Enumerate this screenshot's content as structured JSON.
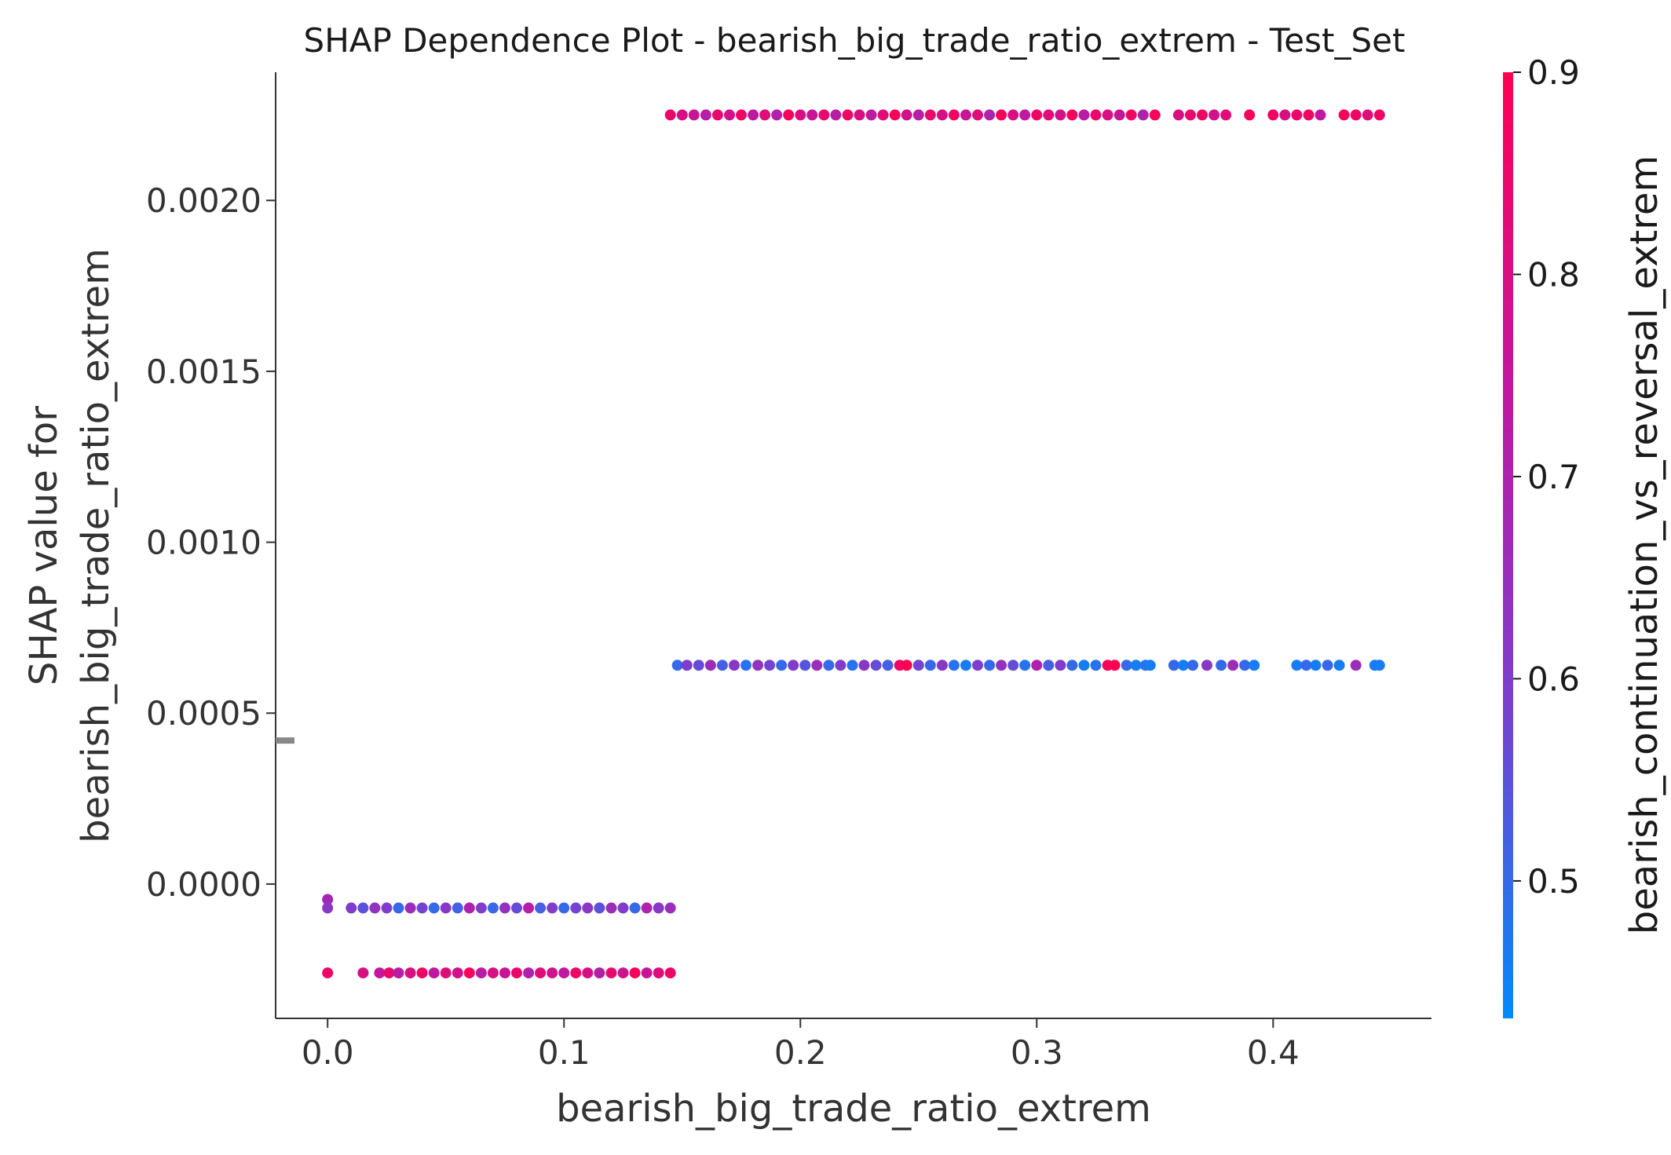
{
  "chart_data": {
    "type": "scatter",
    "title": "SHAP Dependence Plot - bearish_big_trade_ratio_extrem - Test_Set",
    "xlabel": "bearish_big_trade_ratio_extrem",
    "ylabel_lines": [
      "SHAP value for",
      "bearish_big_trade_ratio_extrem"
    ],
    "xlim": [
      -0.022,
      0.467
    ],
    "ylim": [
      -0.000393,
      0.002375
    ],
    "x_ticks": [
      0.0,
      0.1,
      0.2,
      0.3,
      0.4
    ],
    "x_tick_labels": [
      "0.0",
      "0.1",
      "0.2",
      "0.3",
      "0.4"
    ],
    "y_ticks": [
      0.0,
      0.0005,
      0.001,
      0.0015,
      0.002
    ],
    "y_tick_labels": [
      "0.0000",
      "0.0005",
      "0.0010",
      "0.0015",
      "0.0020"
    ],
    "grid": false,
    "colorbar": {
      "label": "bearish_continuation_vs_reversal_extrem",
      "range": [
        0.432,
        0.9
      ],
      "ticks": [
        0.5,
        0.6,
        0.7,
        0.8,
        0.9
      ],
      "tick_labels": [
        "0.5",
        "0.6",
        "0.7",
        "0.8",
        "0.9"
      ],
      "colormap": [
        "#008afb",
        "#7a3fcf",
        "#c2179f",
        "#ff0051"
      ]
    },
    "missing_value_marker": {
      "y": 0.00042,
      "color": "#888888"
    },
    "point_color_default": "#7a3fcf",
    "series": [
      {
        "x": [
          0.0,
          0.0,
          0.01,
          0.015,
          0.02,
          0.025,
          0.03,
          0.035,
          0.04,
          0.045,
          0.05,
          0.055,
          0.06,
          0.065,
          0.07,
          0.075,
          0.08,
          0.085,
          0.09,
          0.095,
          0.1,
          0.105,
          0.11,
          0.115,
          0.12,
          0.125,
          0.13,
          0.135,
          0.14,
          0.145
        ],
        "y": [
          -4.5e-05,
          -7e-05,
          -7e-05,
          -7e-05,
          -7e-05,
          -7e-05,
          -7e-05,
          -7e-05,
          -7e-05,
          -7e-05,
          -7e-05,
          -7e-05,
          -7e-05,
          -7e-05,
          -7e-05,
          -7e-05,
          -7e-05,
          -7e-05,
          -7e-05,
          -7e-05,
          -7e-05,
          -7e-05,
          -7e-05,
          -7e-05,
          -7e-05,
          -7e-05,
          -7e-05,
          -7e-05,
          -7e-05,
          -7e-05
        ],
        "color_value": [
          0.68,
          0.62,
          0.6,
          0.55,
          0.64,
          0.6,
          0.5,
          0.66,
          0.58,
          0.5,
          0.62,
          0.52,
          0.7,
          0.6,
          0.5,
          0.64,
          0.56,
          0.72,
          0.52,
          0.6,
          0.5,
          0.58,
          0.62,
          0.55,
          0.66,
          0.6,
          0.5,
          0.7,
          0.62,
          0.66
        ]
      },
      {
        "x": [
          0.0,
          0.015,
          0.022,
          0.026,
          0.03,
          0.035,
          0.04,
          0.045,
          0.05,
          0.055,
          0.06,
          0.065,
          0.07,
          0.075,
          0.08,
          0.085,
          0.09,
          0.095,
          0.1,
          0.105,
          0.11,
          0.115,
          0.12,
          0.125,
          0.13,
          0.135,
          0.14,
          0.145
        ],
        "y": [
          -0.00026,
          -0.00026,
          -0.00026,
          -0.00026,
          -0.00026,
          -0.00026,
          -0.00026,
          -0.00026,
          -0.00026,
          -0.00026,
          -0.00026,
          -0.00026,
          -0.00026,
          -0.00026,
          -0.00026,
          -0.00026,
          -0.00026,
          -0.00026,
          -0.00026,
          -0.00026,
          -0.00026,
          -0.00026,
          -0.00026,
          -0.00026,
          -0.00026,
          -0.00026,
          -0.00026,
          -0.00026
        ],
        "color_value": [
          0.86,
          0.8,
          0.75,
          0.84,
          0.72,
          0.8,
          0.86,
          0.74,
          0.82,
          0.78,
          0.88,
          0.72,
          0.8,
          0.76,
          0.85,
          0.7,
          0.82,
          0.78,
          0.74,
          0.86,
          0.8,
          0.72,
          0.84,
          0.78,
          0.88,
          0.76,
          0.82,
          0.86
        ]
      },
      {
        "x": [
          0.145,
          0.15,
          0.155,
          0.16,
          0.165,
          0.17,
          0.175,
          0.18,
          0.185,
          0.19,
          0.195,
          0.2,
          0.205,
          0.21,
          0.215,
          0.22,
          0.225,
          0.23,
          0.235,
          0.24,
          0.245,
          0.25,
          0.255,
          0.26,
          0.265,
          0.27,
          0.275,
          0.28,
          0.285,
          0.29,
          0.295,
          0.3,
          0.305,
          0.31,
          0.315,
          0.32,
          0.325,
          0.33,
          0.335,
          0.34,
          0.345,
          0.35,
          0.36,
          0.365,
          0.37,
          0.375,
          0.38,
          0.39,
          0.4,
          0.405,
          0.41,
          0.415,
          0.42,
          0.43,
          0.435,
          0.44,
          0.445
        ],
        "y": [
          0.00225,
          0.00225,
          0.00225,
          0.00225,
          0.00225,
          0.00225,
          0.00225,
          0.00225,
          0.00225,
          0.00225,
          0.00225,
          0.00225,
          0.00225,
          0.00225,
          0.00225,
          0.00225,
          0.00225,
          0.00225,
          0.00225,
          0.00225,
          0.00225,
          0.00225,
          0.00225,
          0.00225,
          0.00225,
          0.00225,
          0.00225,
          0.00225,
          0.00225,
          0.00225,
          0.00225,
          0.00225,
          0.00225,
          0.00225,
          0.00225,
          0.00225,
          0.00225,
          0.00225,
          0.00225,
          0.00225,
          0.00225,
          0.00225,
          0.00225,
          0.00225,
          0.00225,
          0.00225,
          0.00225,
          0.00225,
          0.00225,
          0.00225,
          0.00225,
          0.00225,
          0.00225,
          0.00225,
          0.00225,
          0.00225,
          0.00225
        ],
        "color_value": [
          0.85,
          0.8,
          0.76,
          0.72,
          0.84,
          0.78,
          0.86,
          0.74,
          0.82,
          0.7,
          0.88,
          0.8,
          0.76,
          0.84,
          0.72,
          0.86,
          0.8,
          0.74,
          0.82,
          0.88,
          0.78,
          0.72,
          0.84,
          0.8,
          0.86,
          0.76,
          0.82,
          0.7,
          0.88,
          0.8,
          0.74,
          0.86,
          0.82,
          0.78,
          0.88,
          0.72,
          0.84,
          0.8,
          0.76,
          0.86,
          0.7,
          0.88,
          0.8,
          0.84,
          0.86,
          0.78,
          0.82,
          0.88,
          0.86,
          0.8,
          0.84,
          0.86,
          0.74,
          0.88,
          0.86,
          0.82,
          0.86
        ]
      },
      {
        "x": [
          0.148,
          0.152,
          0.157,
          0.162,
          0.167,
          0.172,
          0.177,
          0.182,
          0.187,
          0.192,
          0.197,
          0.202,
          0.207,
          0.212,
          0.217,
          0.222,
          0.227,
          0.232,
          0.237,
          0.242,
          0.245,
          0.25,
          0.255,
          0.26,
          0.265,
          0.27,
          0.275,
          0.28,
          0.285,
          0.29,
          0.295,
          0.3,
          0.305,
          0.31,
          0.315,
          0.32,
          0.325,
          0.33,
          0.333,
          0.338,
          0.342,
          0.346,
          0.348,
          0.358,
          0.362,
          0.366,
          0.372,
          0.378,
          0.383,
          0.388,
          0.392,
          0.41,
          0.414,
          0.418,
          0.423,
          0.428,
          0.435,
          0.443,
          0.445
        ],
        "y": [
          0.00064,
          0.00064,
          0.00064,
          0.00064,
          0.00064,
          0.00064,
          0.00064,
          0.00064,
          0.00064,
          0.00064,
          0.00064,
          0.00064,
          0.00064,
          0.00064,
          0.00064,
          0.00064,
          0.00064,
          0.00064,
          0.00064,
          0.00064,
          0.00064,
          0.00064,
          0.00064,
          0.00064,
          0.00064,
          0.00064,
          0.00064,
          0.00064,
          0.00064,
          0.00064,
          0.00064,
          0.00064,
          0.00064,
          0.00064,
          0.00064,
          0.00064,
          0.00064,
          0.00064,
          0.00064,
          0.00064,
          0.00064,
          0.00064,
          0.00064,
          0.00064,
          0.00064,
          0.00064,
          0.00064,
          0.00064,
          0.00064,
          0.00064,
          0.00064,
          0.00064,
          0.00064,
          0.00064,
          0.00064,
          0.00064,
          0.00064,
          0.00064,
          0.00064
        ],
        "color_value": [
          0.5,
          0.6,
          0.56,
          0.66,
          0.52,
          0.62,
          0.48,
          0.64,
          0.58,
          0.5,
          0.6,
          0.54,
          0.66,
          0.5,
          0.6,
          0.48,
          0.62,
          0.56,
          0.52,
          0.86,
          0.9,
          0.58,
          0.5,
          0.62,
          0.48,
          0.46,
          0.6,
          0.5,
          0.64,
          0.56,
          0.48,
          0.7,
          0.52,
          0.6,
          0.5,
          0.46,
          0.48,
          0.88,
          0.9,
          0.5,
          0.46,
          0.48,
          0.46,
          0.5,
          0.46,
          0.5,
          0.62,
          0.5,
          0.66,
          0.5,
          0.46,
          0.46,
          0.5,
          0.46,
          0.5,
          0.46,
          0.66,
          0.46,
          0.46
        ]
      }
    ]
  }
}
